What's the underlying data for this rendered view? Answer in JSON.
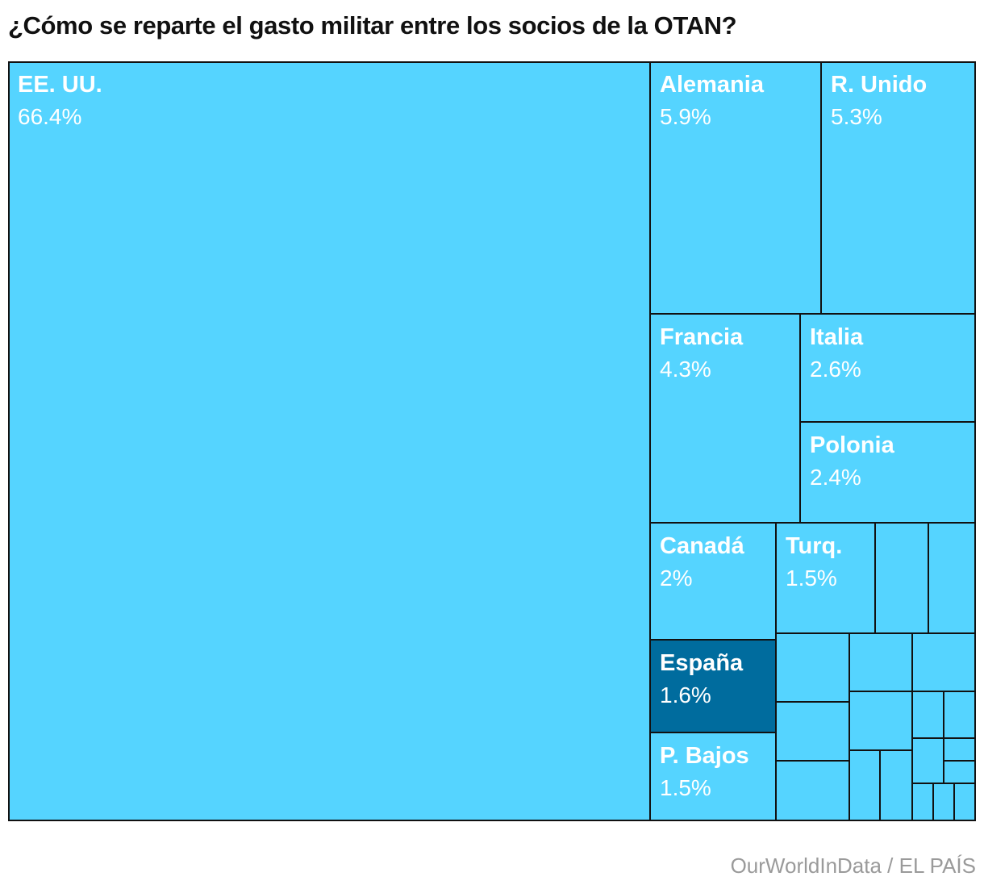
{
  "chart_data": {
    "type": "treemap",
    "title": "¿Cómo se reparte el gasto militar entre los socios de la OTAN?",
    "source": "OurWorldInData / EL PAÍS",
    "colors": {
      "base": "#55d4ff",
      "highlight": "#006c9e",
      "border": "#111111"
    },
    "highlighted": "España",
    "items": [
      {
        "label": "EE. UU.",
        "value_text": "66.4%",
        "value": 66.4
      },
      {
        "label": "Alemania",
        "value_text": "5.9%",
        "value": 5.9
      },
      {
        "label": "R. Unido",
        "value_text": "5.3%",
        "value": 5.3
      },
      {
        "label": "Francia",
        "value_text": "4.3%",
        "value": 4.3
      },
      {
        "label": "Italia",
        "value_text": "2.6%",
        "value": 2.6
      },
      {
        "label": "Polonia",
        "value_text": "2.4%",
        "value": 2.4
      },
      {
        "label": "Canadá",
        "value_text": "2%",
        "value": 2.0
      },
      {
        "label": "Turq.",
        "value_text": "1.5%",
        "value": 1.5
      },
      {
        "label": "España",
        "value_text": "1.6%",
        "value": 1.6
      },
      {
        "label": "P. Bajos",
        "value_text": "1.5%",
        "value": 1.5
      }
    ]
  }
}
